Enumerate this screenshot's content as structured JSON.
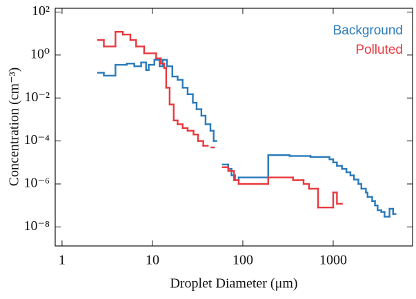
{
  "chart_data": {
    "type": "step",
    "xlabel": "Droplet Diameter (μm)",
    "ylabel": "Concentration (cm⁻³)",
    "xscale": "log",
    "yscale": "log",
    "xlim": [
      0.84,
      7550
    ],
    "ylim": [
      1.3e-09,
      150
    ],
    "xticks": [
      1,
      10,
      100,
      1000
    ],
    "yticks": [
      {
        "value": 100,
        "label": "10²"
      },
      {
        "value": 1,
        "label": "10⁰"
      },
      {
        "value": 0.01,
        "label": "10⁻²"
      },
      {
        "value": 0.0001,
        "label": "10⁻⁴"
      },
      {
        "value": 1e-06,
        "label": "10⁻⁶"
      },
      {
        "value": 1e-08,
        "label": "10⁻⁸"
      }
    ],
    "legend": "upper right",
    "series": [
      {
        "name": "Background",
        "color": "#2a7ab9",
        "x": [
          2.5,
          2.9,
          3.9,
          5.2,
          6.3,
          7.5,
          8.5,
          9.1,
          10.5,
          12,
          13,
          14.5,
          16.6,
          19,
          21.6,
          24.5,
          28,
          30.8,
          34.8,
          38.7,
          43.8,
          47.6,
          51,
          60,
          69,
          75,
          82,
          90,
          191,
          330,
          560,
          910,
          1000,
          1100,
          1250,
          1400,
          1550,
          1700,
          1900,
          2050,
          2300,
          2400,
          2700,
          2900,
          3100,
          3400,
          3700,
          4200,
          4600,
          4900
        ],
        "values": [
          0.15,
          0.11,
          0.35,
          0.4,
          0.3,
          0.45,
          0.2,
          0.35,
          0.6,
          0.3,
          0.6,
          0.3,
          0.1,
          0.07,
          0.03,
          0.015,
          0.006,
          0.003,
          0.0015,
          0.0006,
          0.0003,
          0.0001,
          null,
          8e-06,
          5e-06,
          2.5e-06,
          1.5e-06,
          2e-06,
          2.2e-05,
          2e-05,
          1.8e-05,
          1.4e-05,
          1e-05,
          7e-06,
          5e-06,
          3.5e-06,
          2.5e-06,
          1.6e-06,
          1e-06,
          6e-07,
          4e-07,
          2.5e-07,
          1.6e-07,
          1e-07,
          6e-08,
          5e-08,
          3e-08,
          7e-08,
          4e-08,
          null
        ]
      },
      {
        "name": "Polluted",
        "color": "#e8383d",
        "x": [
          2.5,
          2.9,
          3.9,
          4.7,
          5.7,
          6.6,
          8.1,
          11,
          12.4,
          13.5,
          14.2,
          15.5,
          17.2,
          19,
          21.6,
          24.5,
          28.5,
          32,
          36.5,
          41,
          45,
          48,
          52,
          60,
          69,
          80,
          90,
          191,
          360,
          470,
          540,
          680,
          1000,
          1100,
          1250
        ],
        "values": [
          5,
          2.5,
          12,
          9,
          5,
          2.5,
          1.2,
          0.7,
          0.4,
          0.25,
          0.03,
          0.005,
          0.0009,
          0.0006,
          0.0004,
          0.0003,
          0.0002,
          0.0001,
          6e-05,
          null,
          5e-05,
          null,
          null,
          6e-06,
          4e-06,
          1.5e-06,
          1e-06,
          2e-06,
          1.5e-06,
          1e-06,
          6e-07,
          8e-08,
          4e-07,
          1.2e-07,
          null
        ]
      }
    ]
  }
}
